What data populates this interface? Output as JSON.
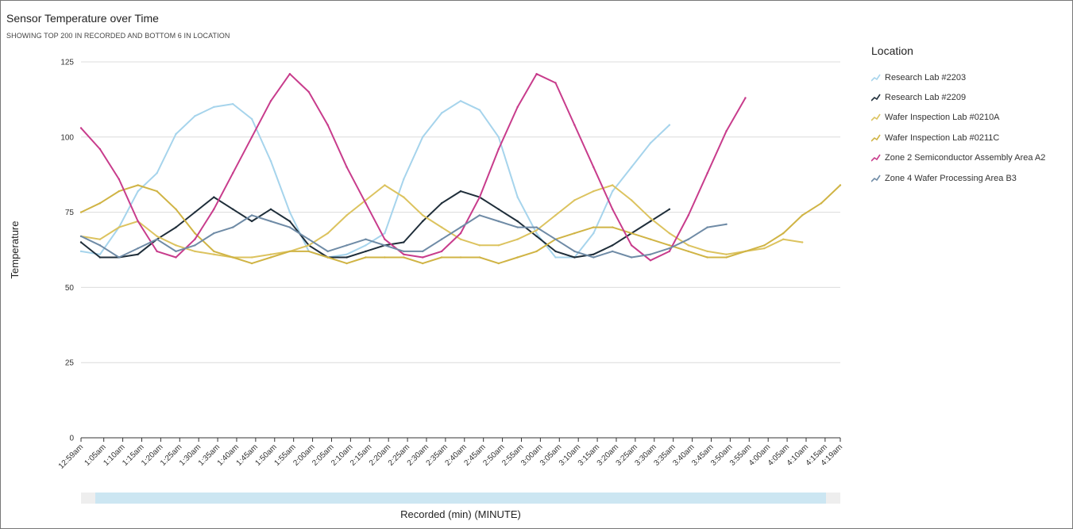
{
  "title": "Sensor Temperature over Time",
  "subtitle": "SHOWING TOP 200 IN RECORDED AND BOTTOM 6 IN LOCATION",
  "legend_title": "Location",
  "chart_data": {
    "type": "line",
    "title": "Sensor Temperature over Time",
    "xlabel": "Recorded (min) (MINUTE)",
    "ylabel": "Temperature",
    "ylim": [
      0,
      125
    ],
    "yticks": [
      0,
      25,
      50,
      75,
      100,
      125
    ],
    "xlim": [
      0,
      200
    ],
    "x_unit": "minutes after 12:59am",
    "xtick_positions": [
      0,
      6,
      11,
      16,
      21,
      26,
      31,
      36,
      41,
      46,
      51,
      56,
      61,
      66,
      71,
      76,
      81,
      86,
      91,
      96,
      101,
      106,
      111,
      116,
      121,
      126,
      131,
      136,
      141,
      146,
      151,
      156,
      161,
      166,
      171,
      176,
      181,
      186,
      191,
      196,
      200
    ],
    "xtick_labels": [
      "12:59am",
      "1:05am",
      "1:10am",
      "1:15am",
      "1:20am",
      "1:25am",
      "1:30am",
      "1:35am",
      "1:40am",
      "1:45am",
      "1:50am",
      "1:55am",
      "2:00am",
      "2:05am",
      "2:10am",
      "2:15am",
      "2:20am",
      "2:25am",
      "2:30am",
      "2:35am",
      "2:40am",
      "2:45am",
      "2:50am",
      "2:55am",
      "3:00am",
      "3:05am",
      "3:10am",
      "3:15am",
      "3:20am",
      "3:25am",
      "3:30am",
      "3:35am",
      "3:40am",
      "3:45am",
      "3:50am",
      "3:55am",
      "4:00am",
      "4:05am",
      "4:10am",
      "4:15am",
      "4:19am"
    ],
    "grid": true,
    "legend_position": "right",
    "series": [
      {
        "name": "Research Lab #2203",
        "color": "#a6d4ec",
        "x": [
          0,
          5,
          10,
          15,
          20,
          25,
          30,
          35,
          40,
          45,
          50,
          55,
          60,
          65,
          70,
          75,
          80,
          85,
          90,
          95,
          100,
          105,
          110,
          115,
          120,
          125,
          130,
          135,
          140,
          145,
          150,
          155
        ],
        "y": [
          62,
          61,
          70,
          82,
          88,
          101,
          107,
          110,
          111,
          106,
          92,
          75,
          62,
          60,
          61,
          64,
          68,
          86,
          100,
          108,
          112,
          109,
          100,
          80,
          68,
          60,
          60,
          68,
          82,
          90,
          98,
          104
        ]
      },
      {
        "name": "Research Lab #2209",
        "color": "#1f2e3a",
        "x": [
          0,
          5,
          10,
          15,
          20,
          25,
          30,
          35,
          40,
          45,
          50,
          55,
          60,
          65,
          70,
          75,
          80,
          85,
          90,
          95,
          100,
          105,
          110,
          115,
          120,
          125,
          130,
          135,
          140,
          145,
          150,
          155
        ],
        "y": [
          65,
          60,
          60,
          61,
          66,
          70,
          75,
          80,
          76,
          72,
          76,
          72,
          64,
          60,
          60,
          62,
          64,
          65,
          72,
          78,
          82,
          80,
          76,
          72,
          67,
          62,
          60,
          61,
          64,
          68,
          72,
          76
        ]
      },
      {
        "name": "Wafer Inspection Lab #0210A",
        "color": "#dcc35f",
        "x": [
          0,
          5,
          10,
          15,
          20,
          25,
          30,
          35,
          40,
          45,
          50,
          55,
          60,
          65,
          70,
          75,
          80,
          85,
          90,
          95,
          100,
          105,
          110,
          115,
          120,
          125,
          130,
          135,
          140,
          145,
          150,
          155,
          160,
          165,
          170,
          175,
          180,
          185,
          190
        ],
        "y": [
          67,
          66,
          70,
          72,
          67,
          64,
          62,
          61,
          60,
          60,
          61,
          62,
          64,
          68,
          74,
          79,
          84,
          80,
          74,
          70,
          66,
          64,
          64,
          66,
          69,
          74,
          79,
          82,
          84,
          79,
          73,
          68,
          64,
          62,
          61,
          62,
          63,
          66,
          65
        ]
      },
      {
        "name": "Wafer Inspection Lab #0211C",
        "color": "#d0b445",
        "x": [
          0,
          5,
          10,
          15,
          20,
          25,
          30,
          35,
          40,
          45,
          50,
          55,
          60,
          65,
          70,
          75,
          80,
          85,
          90,
          95,
          100,
          105,
          110,
          115,
          120,
          125,
          130,
          135,
          140,
          145,
          150,
          155,
          160,
          165,
          170,
          175,
          180,
          185,
          190,
          195,
          200
        ],
        "y": [
          75,
          78,
          82,
          84,
          82,
          76,
          68,
          62,
          60,
          58,
          60,
          62,
          62,
          60,
          58,
          60,
          60,
          60,
          58,
          60,
          60,
          60,
          58,
          60,
          62,
          66,
          68,
          70,
          70,
          68,
          66,
          64,
          62,
          60,
          60,
          62,
          64,
          68,
          74,
          78,
          84
        ]
      },
      {
        "name": "Zone 2 Semiconductor Assembly Area A2",
        "color": "#c83c8c",
        "x": [
          0,
          5,
          10,
          15,
          20,
          25,
          30,
          35,
          40,
          45,
          50,
          55,
          60,
          65,
          70,
          75,
          80,
          85,
          90,
          95,
          100,
          105,
          110,
          115,
          120,
          125,
          130,
          135,
          140,
          145,
          150,
          155,
          160,
          165,
          170,
          175
        ],
        "y": [
          103,
          96,
          86,
          72,
          62,
          60,
          66,
          76,
          88,
          100,
          112,
          121,
          115,
          104,
          90,
          78,
          66,
          61,
          60,
          62,
          68,
          80,
          96,
          110,
          121,
          118,
          104,
          90,
          76,
          64,
          59,
          62,
          74,
          88,
          102,
          113
        ]
      },
      {
        "name": "Zone 4 Wafer Processing Area B3",
        "color": "#6f8ba6",
        "x": [
          0,
          5,
          10,
          15,
          20,
          25,
          30,
          35,
          40,
          45,
          50,
          55,
          60,
          65,
          70,
          75,
          80,
          85,
          90,
          95,
          100,
          105,
          110,
          115,
          120,
          125,
          130,
          135,
          140,
          145,
          150,
          155,
          160,
          165,
          170
        ],
        "y": [
          67,
          64,
          60,
          63,
          66,
          62,
          64,
          68,
          70,
          74,
          72,
          70,
          66,
          62,
          64,
          66,
          64,
          62,
          62,
          66,
          70,
          74,
          72,
          70,
          70,
          66,
          62,
          60,
          62,
          60,
          61,
          63,
          66,
          70,
          71
        ]
      }
    ]
  }
}
